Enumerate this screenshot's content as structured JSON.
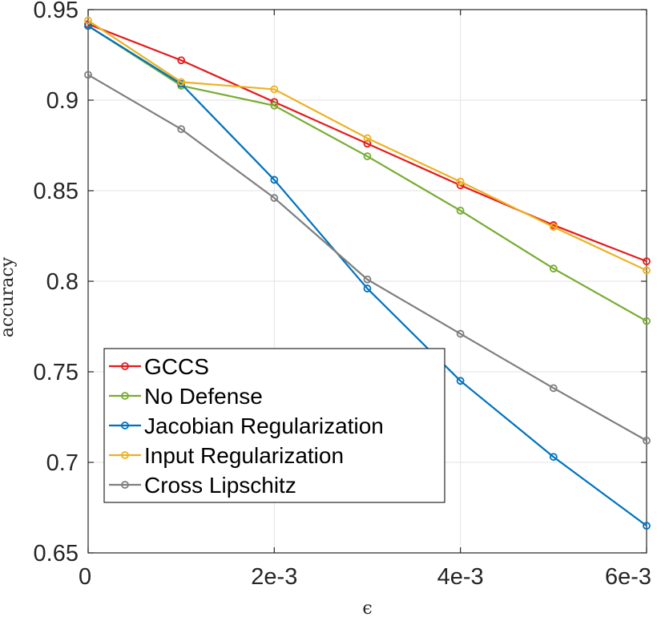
{
  "chart_data": {
    "type": "line",
    "title": "",
    "xlabel": "ϵ",
    "ylabel": "accuracy",
    "x": [
      0,
      0.001,
      0.002,
      0.003,
      0.004,
      0.005,
      0.006
    ],
    "xlim": [
      0,
      0.006
    ],
    "ylim": [
      0.65,
      0.95
    ],
    "x_ticks": [
      0,
      0.002,
      0.004,
      0.006
    ],
    "x_tick_labels": [
      "0",
      "2e-3",
      "4e-3",
      "6e-3"
    ],
    "y_ticks": [
      0.65,
      0.7,
      0.75,
      0.8,
      0.85,
      0.9,
      0.95
    ],
    "y_tick_labels": [
      "0.65",
      "0.7",
      "0.75",
      "0.8",
      "0.85",
      "0.9",
      "0.95"
    ],
    "grid": true,
    "legend_position": "bottom-left",
    "series": [
      {
        "name": "GCCS",
        "color": "#e41a1c",
        "values": [
          0.942,
          0.922,
          0.899,
          0.876,
          0.853,
          0.831,
          0.811
        ]
      },
      {
        "name": "No Defense",
        "color": "#77ac30",
        "values": [
          0.941,
          0.908,
          0.897,
          0.869,
          0.839,
          0.807,
          0.778
        ]
      },
      {
        "name": "Jacobian Regularization",
        "color": "#0072bd",
        "values": [
          0.941,
          0.909,
          0.856,
          0.796,
          0.745,
          0.703,
          0.665
        ]
      },
      {
        "name": "Input Regularization",
        "color": "#edb120",
        "values": [
          0.944,
          0.91,
          0.906,
          0.879,
          0.855,
          0.83,
          0.806
        ]
      },
      {
        "name": "Cross Lipschitz",
        "color": "#7f7f7f",
        "values": [
          0.914,
          0.884,
          0.846,
          0.801,
          0.771,
          0.741,
          0.712
        ]
      }
    ]
  }
}
